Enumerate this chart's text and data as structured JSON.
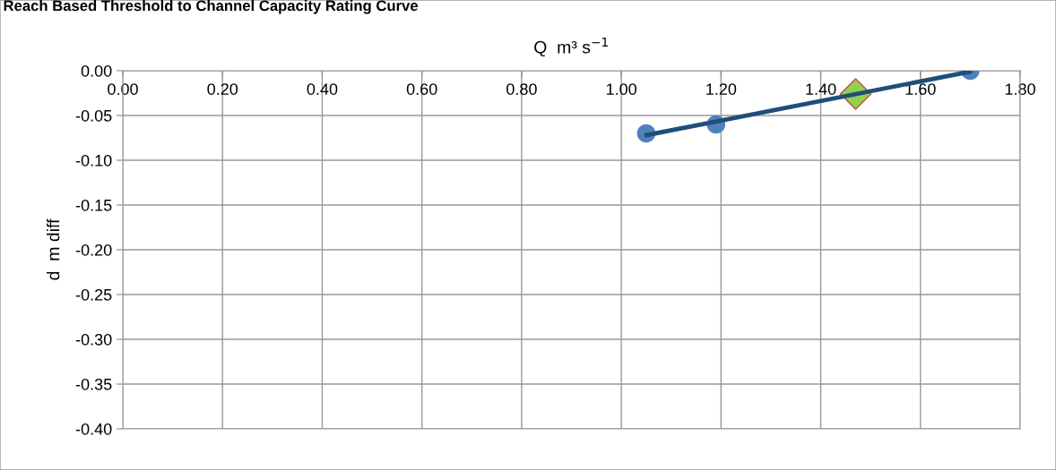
{
  "chart_data": {
    "type": "scatter",
    "title": "Reach Based Threshold to Channel Capacity Rating Curve",
    "xlabel": "Q  m³ s$^{−1}$",
    "ylabel": "d  m diff",
    "series": [
      {
        "color": "#4f81bd",
        "marker": "circle",
        "x": [
          1.05,
          1.19,
          1.7
        ],
        "values": [
          -0.07,
          -0.06,
          0.0
        ]
      },
      {
        "color": "#92d050",
        "marker": "diamond",
        "x": [
          1.47
        ],
        "values": [
          -0.026
        ]
      },
      {
        "type": "line",
        "color": "#1f4e79",
        "marker": "none",
        "x": [
          1.05,
          1.7
        ],
        "values": [
          -0.072,
          -0.001
        ]
      }
    ],
    "xlim": [
      0,
      1.8
    ],
    "xticks": [
      {
        "value": 0,
        "label": "0.00"
      },
      {
        "value": 0.2,
        "label": "0.20"
      },
      {
        "value": 0.4,
        "label": "0.40"
      },
      {
        "value": 0.6,
        "label": "0.60"
      },
      {
        "value": 0.8,
        "label": "0.80"
      },
      {
        "value": 1.0,
        "label": "1.00"
      },
      {
        "value": 1.2,
        "label": "1.20"
      },
      {
        "value": 1.4,
        "label": "1.40"
      },
      {
        "value": 1.6,
        "label": "1.60"
      },
      {
        "value": 1.8,
        "label": "1.80"
      }
    ],
    "ylim": [
      -0.4,
      0
    ],
    "yticks": [
      {
        "value": 0,
        "label": "0.00"
      },
      {
        "value": -0.05,
        "label": "-0.05"
      },
      {
        "value": -0.1,
        "label": "-0.10"
      },
      {
        "value": -0.15,
        "label": "-0.15"
      },
      {
        "value": -0.2,
        "label": "-0.20"
      },
      {
        "value": -0.25,
        "label": "-0.25"
      },
      {
        "value": -0.3,
        "label": "-0.30"
      },
      {
        "value": -0.35,
        "label": "-0.35"
      },
      {
        "value": -0.4,
        "label": "-0.40"
      }
    ],
    "grid": true,
    "legend": false
  }
}
